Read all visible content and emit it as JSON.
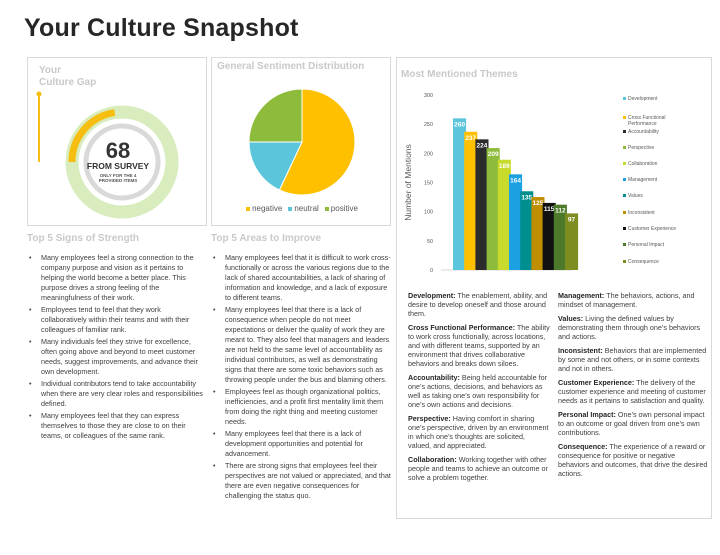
{
  "page": {
    "title": "Your Culture Snapshot"
  },
  "culture_gap": {
    "title_line1": "Your",
    "title_line2": "Culture Gap",
    "value": "68",
    "value_num": 68,
    "subtitle": "FROM SURVEY",
    "note_line1": "ONLY FOR THE 4",
    "note_line2": "PROVIDED ITEMS",
    "colors": {
      "ring": "#d8ecbd",
      "progress": "#f7be12",
      "center": "#d9d9d9"
    }
  },
  "sentiment": {
    "title": "General Sentiment Distribution"
  },
  "themes": {
    "title": "Most Mentioned Themes"
  },
  "strengths": {
    "title": "Top 5 Signs of Strength",
    "items": [
      "Many employees feel a strong connection to the company purpose and vision as it pertains to helping the world become a better place.  This purpose drives a strong feeling of the meaningfulness of their work.",
      "Employees tend to feel that they work collaboratively within their teams and with their colleagues of familiar rank.",
      "Many individuals feel they strive for excellence, often going above and beyond to meet customer needs, suggest improvements, and advance their own development.",
      "Individual contributors tend to take accountability when there are very clear roles and responsibilities defined.",
      "Many employees feel that they can express themselves to those they are close to on their teams, or colleagues of the same rank."
    ]
  },
  "improvements": {
    "title": "Top 5 Areas to Improve",
    "items": [
      "Many employees feel that it is difficult to work cross-functionally or across the various regions due to the lack of shared accountabilities, a lack of sharing of information and knowledge, and a lack of exposure to different teams.",
      "Many employees feel that there is a lack of consequence when people do not meet expectations or deliver the quality of work they are meant to.  They also feel that managers and leaders are not held to the same level of accountability as individual contributors, as well as demonstrating signs that there are some toxic behaviors such as throwing people under the bus and blaming others.",
      "Employees feel as though organizational politics, inefficiencies, and a profit first mentality limit them from doing the right thing and meeting customer needs.",
      "Many employees feel that there is a lack of development opportunities and potential for advancement.",
      "There are strong signs that employees feel their perspectives are not valued or appreciated, and that there are even negative consequences for challenging the status quo."
    ]
  },
  "definitions": {
    "left": [
      {
        "term": "Development:",
        "text": " The enablement, ability, and desire to develop oneself and those around them."
      },
      {
        "term": "Cross Functional Performance:",
        "text": " The ability to work cross functionally, across locations, and with different teams, supported by an environment that drives collaborative behaviors and breaks down siloes."
      },
      {
        "term": "Accountability:",
        "text": " Being held accountable for one’s actions, decisions, and behaviors as well as taking one’s own responsibility for one’s own actions and decisions."
      },
      {
        "term": "Perspective:",
        "text": " Having comfort in sharing one’s perspective, driven by an environment in which one’s thoughts are solicited, valued, and appreciated."
      },
      {
        "term": "Collaboration:",
        "text": " Working together with other people and teams to achieve an outcome or solve a problem together."
      }
    ],
    "right": [
      {
        "term": "Management:",
        "text": " The behaviors, actions, and mindset of management."
      },
      {
        "term": "Values:",
        "text": " Living the defined values by demonstrating them through one’s behaviors and actions."
      },
      {
        "term": "Inconsistent:",
        "text": " Behaviors that are implemented by some and not others, or in some contexts and not in others."
      },
      {
        "term": "Customer Experience:",
        "text": " The delivery of the customer experience and meeting of customer needs as it pertains to satisfaction and quality."
      },
      {
        "term": "Personal Impact:",
        "text": " One’s own personal impact to an outcome or goal driven from one’s own contributions."
      },
      {
        "term": "Consequence:",
        "text": " The experience of a reward or consequence for positive or negative behaviors and outcomes, that drive the desired actions."
      }
    ]
  },
  "chart_data": [
    {
      "type": "pie",
      "title": "General Sentiment Distribution",
      "categories": [
        "negative",
        "neutral",
        "positive"
      ],
      "values": [
        57,
        18,
        25
      ],
      "colors": [
        "#ffc000",
        "#5bc5dc",
        "#8dbb3c"
      ],
      "legend": "bottom"
    },
    {
      "type": "bar",
      "title": "Most Mentioned Themes",
      "ylabel": "Number of Mentions",
      "ylim": [
        0,
        300
      ],
      "yticks": [
        "0",
        "50",
        "100",
        "150",
        "200",
        "250",
        "300"
      ],
      "categories": [
        "Development",
        "Cross Functional Performance",
        "Accountability",
        "Perspective",
        "Collaboration",
        "Management",
        "Values",
        "Inconsistent",
        "Customer Experience",
        "Personal Impact",
        "Consequence"
      ],
      "legend_labels": [
        "Development",
        "Cross Functional Performance",
        "Accountability",
        "Perspective",
        "Collaboration",
        "Management",
        "Values",
        "Inconsistent",
        "Customer Experience",
        "Personal Impact",
        "Consequence"
      ],
      "values": [
        260,
        237,
        224,
        209,
        189,
        164,
        135,
        125,
        115,
        112,
        97
      ],
      "colors": [
        "#5bc5dc",
        "#ffc000",
        "#2b2b2b",
        "#8dbb3c",
        "#c8da2b",
        "#1ba1e2",
        "#008f8f",
        "#bf8f00",
        "#111111",
        "#4c7a2a",
        "#7f8c1f"
      ],
      "legend": "right"
    }
  ]
}
